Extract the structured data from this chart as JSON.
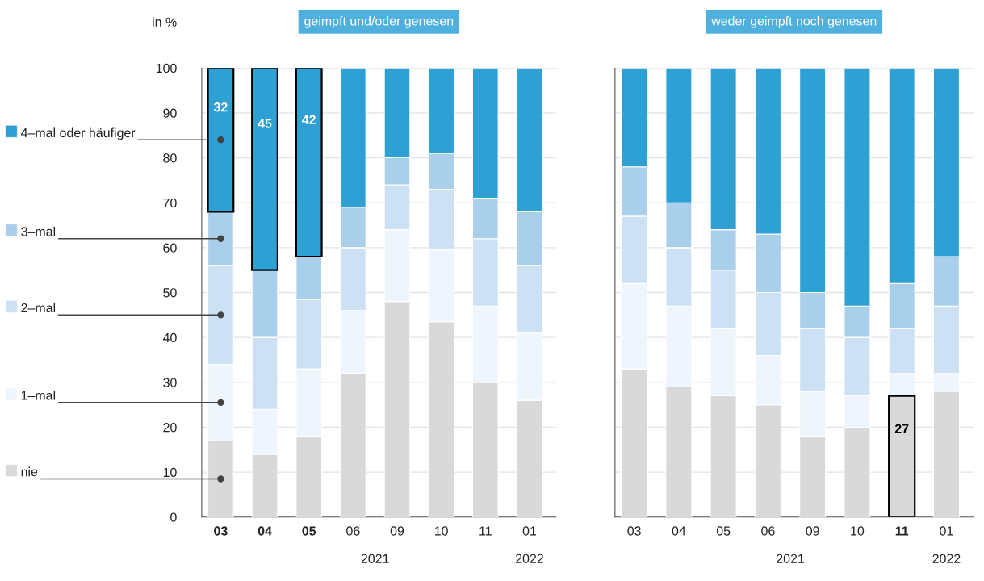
{
  "chart_data": [
    {
      "type": "bar",
      "stacked": true,
      "title": "geimpft und/oder genesen",
      "ylabel": "in %",
      "categories": [
        "03",
        "04",
        "05",
        "06",
        "09",
        "10",
        "11",
        "01"
      ],
      "series": [
        {
          "name": "nie",
          "color": "#d9d9d9",
          "values": [
            17,
            14,
            18,
            32,
            48,
            43.5,
            30,
            26
          ]
        },
        {
          "name": "1–mal",
          "color": "#eef5fc",
          "values": [
            17,
            10,
            15,
            14,
            16,
            16,
            17,
            15
          ]
        },
        {
          "name": "2–mal",
          "color": "#cce1f4",
          "values": [
            22,
            16,
            15.5,
            14,
            10,
            13.5,
            15,
            15
          ]
        },
        {
          "name": "3–mal",
          "color": "#aacfea",
          "values": [
            12,
            15,
            9.5,
            9,
            6,
            8,
            9,
            12
          ]
        },
        {
          "name": "4–mal oder häufiger",
          "color": "#2ea0d4",
          "values": [
            32,
            45,
            42,
            31,
            20,
            19,
            29,
            32
          ],
          "value_labels": [
            "32",
            "45",
            "42",
            null,
            null,
            null,
            null,
            null
          ]
        }
      ],
      "ylim": [
        0,
        100
      ],
      "yticks": [
        0,
        10,
        20,
        30,
        40,
        50,
        60,
        70,
        80,
        90,
        100
      ],
      "grid": "y",
      "legend": "left",
      "annotations": [
        "2021",
        "2022"
      ]
    },
    {
      "type": "bar",
      "stacked": true,
      "title": "weder geimpft noch genesen",
      "categories": [
        "03",
        "04",
        "05",
        "06",
        "09",
        "10",
        "11",
        "01"
      ],
      "series": [
        {
          "color": "#d9d9d9",
          "values": [
            33,
            29,
            27,
            25,
            18,
            20,
            27,
            28
          ],
          "value_labels": [
            null,
            null,
            null,
            null,
            null,
            null,
            "27",
            null
          ]
        },
        {
          "color": "#eef5fc",
          "values": [
            19,
            18,
            15,
            11,
            10,
            7,
            5,
            4
          ]
        },
        {
          "color": "#cce1f4",
          "values": [
            15,
            13,
            13,
            14,
            14,
            13,
            10,
            15
          ]
        },
        {
          "color": "#aacfea",
          "values": [
            11,
            10,
            9,
            13,
            8,
            7,
            10,
            11
          ]
        },
        {
          "color": "#2ea0d4",
          "values": [
            22,
            30,
            36,
            37,
            50,
            53,
            48,
            42
          ]
        }
      ],
      "ylim": [
        0,
        100
      ],
      "yticks": [
        0,
        10,
        20,
        30,
        40,
        50,
        60,
        70,
        80,
        90,
        100
      ],
      "grid": "y",
      "tick_labels": "x",
      "annotations": [
        "2021",
        "2022"
      ]
    }
  ]
}
